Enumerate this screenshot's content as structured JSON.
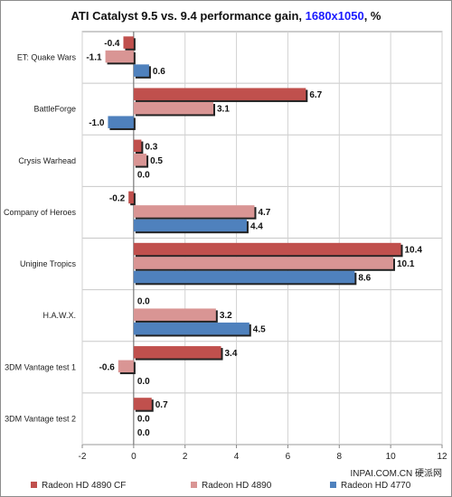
{
  "title": {
    "main": "ATI Catalyst 9.5 vs. 9.4 performance gain, ",
    "highlight": "1680x1050",
    "suffix": ", %"
  },
  "watermark": "INPAI.COM.CN 硬派网",
  "chart_data": {
    "type": "bar",
    "orientation": "horizontal",
    "title": "ATI Catalyst 9.5 vs. 9.4 performance gain, 1680x1050, %",
    "categories": [
      "ET: Quake Wars",
      "BattleForge",
      "Crysis Warhead",
      "Company of Heroes",
      "Unigine Tropics",
      "H.A.W.X.",
      "3DM Vantage test 1",
      "3DM Vantage test 2"
    ],
    "series": [
      {
        "name": "Radeon HD 4890 CF",
        "color": "#c0504d",
        "values": [
          -0.4,
          6.7,
          0.3,
          -0.2,
          10.4,
          0.0,
          3.4,
          0.7
        ]
      },
      {
        "name": "Radeon HD 4890",
        "color": "#d99594",
        "values": [
          -1.1,
          3.1,
          0.5,
          4.7,
          10.1,
          3.2,
          -0.6,
          0.0
        ]
      },
      {
        "name": "Radeon HD 4770",
        "color": "#4f81bd",
        "values": [
          0.6,
          -1.0,
          0.0,
          4.4,
          8.6,
          4.5,
          0.0,
          0.0
        ]
      }
    ],
    "xlim": [
      -2,
      12
    ],
    "xticks": [
      "-2",
      "0",
      "2",
      "4",
      "6",
      "8",
      "10",
      "12"
    ],
    "grid": true,
    "legend_position": "bottom"
  }
}
